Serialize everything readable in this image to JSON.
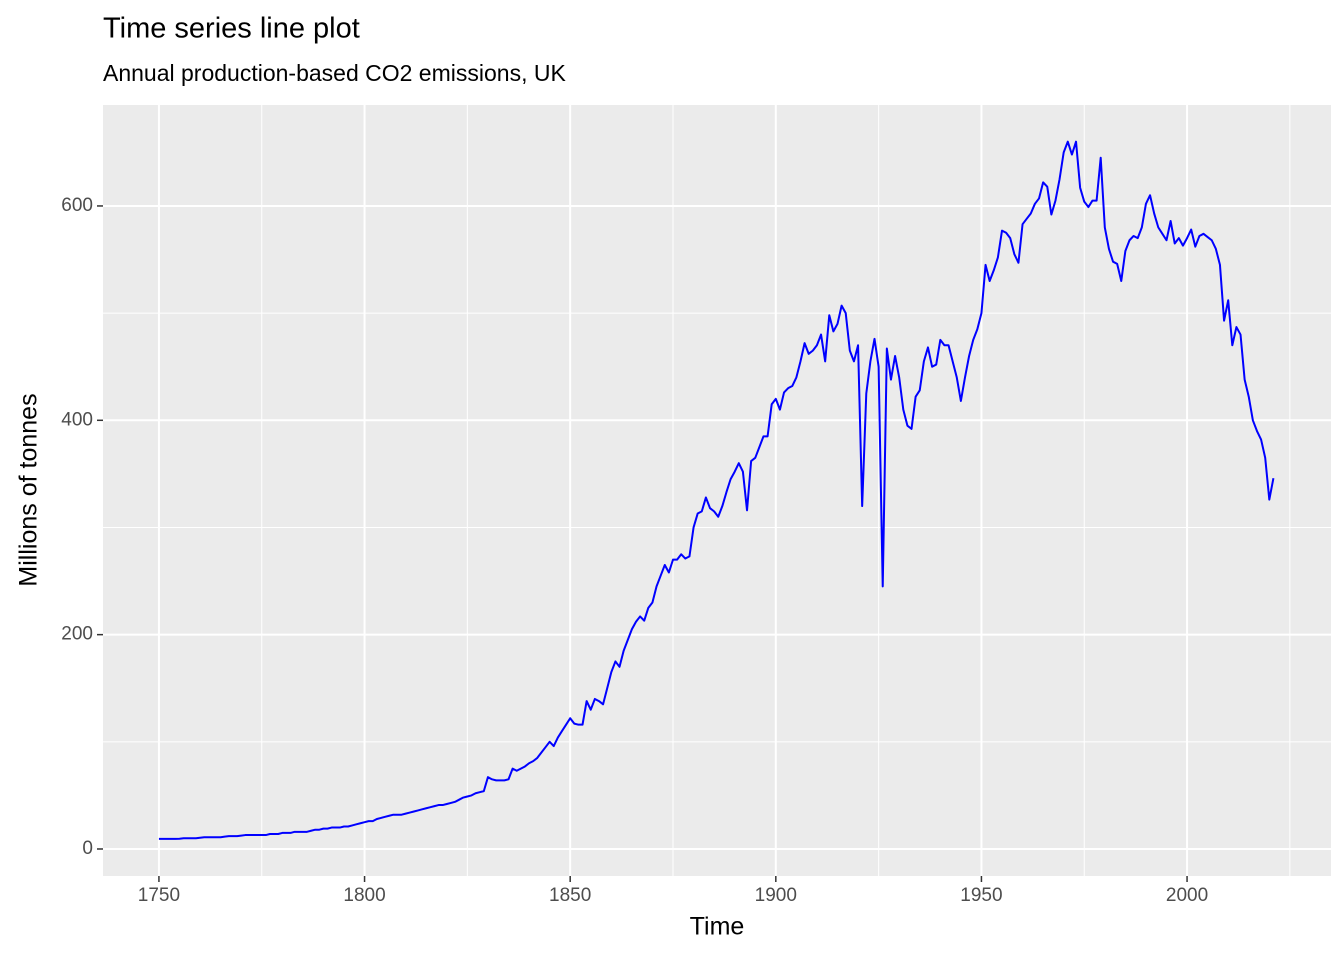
{
  "chart_data": {
    "type": "line",
    "title": "Time series line plot",
    "subtitle": "Annual production-based CO2 emissions, UK",
    "xlabel": "Time",
    "ylabel": "Millions of tonnes",
    "color": "#0000ff",
    "x": [
      1750,
      1751,
      1752,
      1753,
      1754,
      1755,
      1756,
      1757,
      1758,
      1759,
      1760,
      1761,
      1762,
      1763,
      1764,
      1765,
      1766,
      1767,
      1768,
      1769,
      1770,
      1771,
      1772,
      1773,
      1774,
      1775,
      1776,
      1777,
      1778,
      1779,
      1780,
      1781,
      1782,
      1783,
      1784,
      1785,
      1786,
      1787,
      1788,
      1789,
      1790,
      1791,
      1792,
      1793,
      1794,
      1795,
      1796,
      1797,
      1798,
      1799,
      1800,
      1801,
      1802,
      1803,
      1804,
      1805,
      1806,
      1807,
      1808,
      1809,
      1810,
      1811,
      1812,
      1813,
      1814,
      1815,
      1816,
      1817,
      1818,
      1819,
      1820,
      1821,
      1822,
      1823,
      1824,
      1825,
      1826,
      1827,
      1828,
      1829,
      1830,
      1831,
      1832,
      1833,
      1834,
      1835,
      1836,
      1837,
      1838,
      1839,
      1840,
      1841,
      1842,
      1843,
      1844,
      1845,
      1846,
      1847,
      1848,
      1849,
      1850,
      1851,
      1852,
      1853,
      1854,
      1855,
      1856,
      1857,
      1858,
      1859,
      1860,
      1861,
      1862,
      1863,
      1864,
      1865,
      1866,
      1867,
      1868,
      1869,
      1870,
      1871,
      1872,
      1873,
      1874,
      1875,
      1876,
      1877,
      1878,
      1879,
      1880,
      1881,
      1882,
      1883,
      1884,
      1885,
      1886,
      1887,
      1888,
      1889,
      1890,
      1891,
      1892,
      1893,
      1894,
      1895,
      1896,
      1897,
      1898,
      1899,
      1900,
      1901,
      1902,
      1903,
      1904,
      1905,
      1906,
      1907,
      1908,
      1909,
      1910,
      1911,
      1912,
      1913,
      1914,
      1915,
      1916,
      1917,
      1918,
      1919,
      1920,
      1921,
      1922,
      1923,
      1924,
      1925,
      1926,
      1927,
      1928,
      1929,
      1930,
      1931,
      1932,
      1933,
      1934,
      1935,
      1936,
      1937,
      1938,
      1939,
      1940,
      1941,
      1942,
      1943,
      1944,
      1945,
      1946,
      1947,
      1948,
      1949,
      1950,
      1951,
      1952,
      1953,
      1954,
      1955,
      1956,
      1957,
      1958,
      1959,
      1960,
      1961,
      1962,
      1963,
      1964,
      1965,
      1966,
      1967,
      1968,
      1969,
      1970,
      1971,
      1972,
      1973,
      1974,
      1975,
      1976,
      1977,
      1978,
      1979,
      1980,
      1981,
      1982,
      1983,
      1984,
      1985,
      1986,
      1987,
      1988,
      1989,
      1990,
      1991,
      1992,
      1993,
      1994,
      1995,
      1996,
      1997,
      1998,
      1999,
      2000,
      2001,
      2002,
      2003,
      2004,
      2005,
      2006,
      2007,
      2008,
      2009,
      2010,
      2011,
      2012,
      2013,
      2014,
      2015,
      2016,
      2017,
      2018,
      2019,
      2020,
      2021
    ],
    "values": [
      9.4,
      9.4,
      9.4,
      9.4,
      9.4,
      9.6,
      10,
      10,
      10,
      10,
      10.5,
      11,
      11,
      11,
      11,
      11,
      11.5,
      12,
      12,
      12,
      12.5,
      13,
      13,
      13,
      13,
      13,
      13,
      14,
      14,
      14,
      15,
      15,
      15,
      16,
      16,
      16,
      16,
      17,
      18,
      18,
      19,
      19,
      20,
      20,
      20,
      21,
      21,
      22,
      23,
      24,
      25,
      26,
      26,
      28,
      29,
      30,
      31,
      32,
      32,
      32,
      33,
      34,
      35,
      36,
      37,
      38,
      39,
      40,
      41,
      41,
      42,
      43,
      44,
      46,
      48,
      49,
      50,
      52,
      53,
      54,
      67,
      65,
      64,
      64,
      64,
      65,
      75,
      73,
      75,
      77,
      80,
      82,
      85,
      90,
      95,
      100,
      96,
      104,
      110,
      116,
      122,
      117,
      116,
      116,
      138,
      130,
      140,
      138,
      135,
      150,
      165,
      175,
      170,
      185,
      195,
      205,
      212,
      217,
      213,
      225,
      230,
      245,
      255,
      265,
      258,
      270,
      270,
      275,
      271,
      273,
      300,
      313,
      315,
      328,
      318,
      315,
      310,
      320,
      333,
      345,
      352,
      360,
      352,
      316,
      362,
      365,
      375,
      385,
      385,
      415,
      420,
      410,
      426,
      430,
      432,
      440,
      455,
      472,
      462,
      465,
      470,
      480,
      455,
      498,
      483,
      490,
      507,
      500,
      465,
      455,
      470,
      320,
      425,
      455,
      476,
      450,
      245,
      467,
      438,
      460,
      440,
      410,
      395,
      392,
      422,
      428,
      455,
      468,
      450,
      452,
      475,
      470,
      470,
      455,
      440,
      418,
      440,
      460,
      475,
      485,
      500,
      545,
      530,
      540,
      552,
      577,
      575,
      570,
      555,
      547,
      583,
      588,
      593,
      602,
      607,
      622,
      618,
      592,
      605,
      625,
      650,
      660,
      648,
      660,
      617,
      604,
      599,
      605,
      605,
      645,
      580,
      560,
      548,
      546,
      530,
      558,
      568,
      572,
      570,
      580,
      602,
      610,
      593,
      580,
      574,
      568,
      586,
      565,
      570,
      563,
      570,
      578,
      562,
      572,
      574,
      571,
      568,
      560,
      545,
      493,
      512,
      470,
      487,
      480,
      438,
      422,
      400,
      390,
      382,
      365,
      326,
      346
    ],
    "xlim": [
      1736.4,
      2035.0
    ],
    "xticks": [
      1750,
      1800,
      1850,
      1900,
      1950,
      2000
    ],
    "xminor": [
      1775,
      1825,
      1875,
      1925,
      1975,
      2025
    ],
    "ylim": [
      -25.2,
      694.2
    ],
    "yticks": [
      0,
      200,
      400,
      600
    ],
    "yminor": [
      100,
      300,
      500
    ],
    "grid": true
  }
}
